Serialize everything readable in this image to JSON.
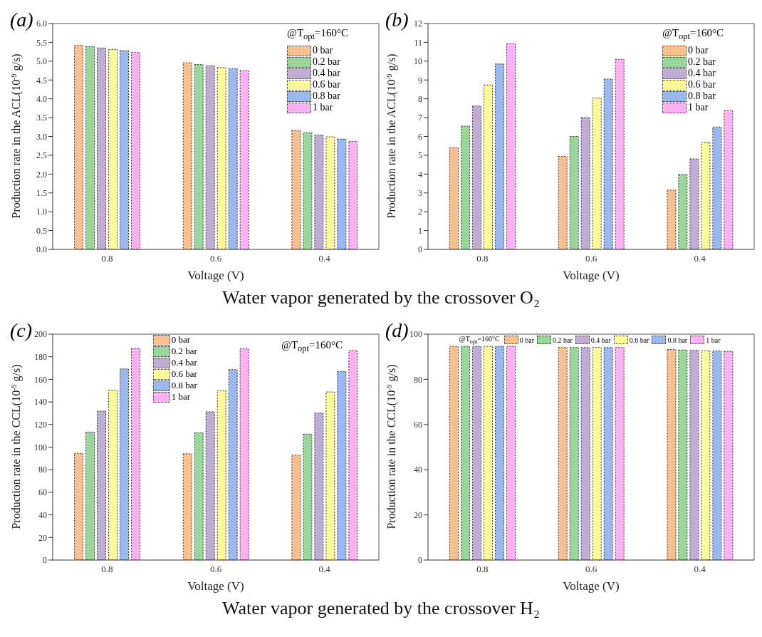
{
  "chart_data": [
    {
      "type": "bar",
      "title": "(a)",
      "ylabel": "Production rate in the ACL(10$^{-9}$ g/s)",
      "xlabel": "Voltage (V)",
      "legend_title": "@T$_{opt}$=160°C",
      "legend": "top right",
      "annotations": [
        "Water vapor generated by the crossover O₂"
      ],
      "categories": [
        "0.8",
        "0.6",
        "0.4"
      ],
      "ylim": [
        0,
        6
      ],
      "yticks": [
        {
          "value": 0,
          "label": "0.0"
        },
        {
          "value": 0.5,
          "label": "0.5"
        },
        {
          "value": 1,
          "label": "1.0"
        },
        {
          "value": 1.5,
          "label": "1.5"
        },
        {
          "value": 2,
          "label": "2.0"
        },
        {
          "value": 2.5,
          "label": "2.5"
        },
        {
          "value": 3,
          "label": "3.0"
        },
        {
          "value": 3.5,
          "label": "3.5"
        },
        {
          "value": 4,
          "label": "4.0"
        },
        {
          "value": 4.5,
          "label": "4.5"
        },
        {
          "value": 5,
          "label": "5.0"
        },
        {
          "value": 5.5,
          "label": "5.5"
        },
        {
          "value": 6,
          "label": "6.0"
        }
      ],
      "series": [
        {
          "name": "0 bar",
          "color": "#f9c08f",
          "values": [
            5.42,
            4.96,
            3.16
          ]
        },
        {
          "name": "0.2 bar",
          "color": "#98d69a",
          "values": [
            5.39,
            4.91,
            3.1
          ]
        },
        {
          "name": "0.4 bar",
          "color": "#bfadd3",
          "values": [
            5.35,
            4.88,
            3.04
          ]
        },
        {
          "name": "0.6 bar",
          "color": "#fdfa9a",
          "values": [
            5.31,
            4.83,
            2.99
          ]
        },
        {
          "name": "0.8 bar",
          "color": "#99b9f0",
          "values": [
            5.28,
            4.8,
            2.93
          ]
        },
        {
          "name": "1 bar",
          "color": "#fdb0f4",
          "values": [
            5.23,
            4.75,
            2.87
          ]
        }
      ]
    },
    {
      "type": "bar",
      "title": "(b)",
      "ylabel": "Production rate in the ACL(10$^{-9}$ g/s)",
      "xlabel": "Voltage (V)",
      "legend_title": "@T$_{opt}$=160°C",
      "legend": "top right",
      "categories": [
        "0.8",
        "0.6",
        "0.4"
      ],
      "ylim": [
        0,
        12
      ],
      "yticks": [
        0,
        1,
        2,
        3,
        4,
        5,
        6,
        7,
        8,
        9,
        10,
        11,
        12
      ],
      "series": [
        {
          "name": "0 bar",
          "color": "#f9c08f",
          "values": [
            5.4,
            4.94,
            3.15
          ]
        },
        {
          "name": "0.2 bar",
          "color": "#98d69a",
          "values": [
            6.55,
            6.0,
            3.98
          ]
        },
        {
          "name": "0.4 bar",
          "color": "#bfadd3",
          "values": [
            7.62,
            7.01,
            4.81
          ]
        },
        {
          "name": "0.6 bar",
          "color": "#fdfa9a",
          "values": [
            8.73,
            8.04,
            5.68
          ]
        },
        {
          "name": "0.8 bar",
          "color": "#99b9f0",
          "values": [
            9.85,
            9.05,
            6.5
          ]
        },
        {
          "name": "1 bar",
          "color": "#fdb0f4",
          "values": [
            10.93,
            10.1,
            7.37
          ]
        }
      ]
    },
    {
      "type": "bar",
      "title": "(c)",
      "ylabel": "Production rate in the CCL(10$^{-9}$ g/s)",
      "xlabel": "Voltage (V)",
      "legend_title": "@T$_{opt}$=160°C",
      "legend": "top left",
      "annotations": [
        "Water vapor generated by the crossover H₂"
      ],
      "categories": [
        "0.8",
        "0.6",
        "0.4"
      ],
      "ylim": [
        0,
        200
      ],
      "yticks": [
        0,
        20,
        40,
        60,
        80,
        100,
        120,
        140,
        160,
        180,
        200
      ],
      "series": [
        {
          "name": "0 bar",
          "color": "#f9c08f",
          "values": [
            94.5,
            94.1,
            93
          ]
        },
        {
          "name": "0.2 bar",
          "color": "#98d69a",
          "values": [
            113.3,
            112.8,
            111.5
          ]
        },
        {
          "name": "0.4 bar",
          "color": "#bfadd3",
          "values": [
            131.9,
            131.3,
            130.2
          ]
        },
        {
          "name": "0.6 bar",
          "color": "#fdfa9a",
          "values": [
            150.5,
            150,
            148.8
          ]
        },
        {
          "name": "0.8 bar",
          "color": "#99b9f0",
          "values": [
            169.2,
            168.6,
            167
          ]
        },
        {
          "name": "1 bar",
          "color": "#fdb0f4",
          "values": [
            187.5,
            187,
            185.5
          ]
        }
      ]
    },
    {
      "type": "bar",
      "title": "(d)",
      "ylabel": "Production rate in the CCL(10$^{-9}$ g/s)",
      "xlabel": "Voltage (V)",
      "legend_title": "@T$_{opt}$=160°C",
      "legend": "top",
      "categories": [
        "0.8",
        "0.6",
        "0.4"
      ],
      "ylim": [
        0,
        100
      ],
      "yticks": [
        0,
        20,
        40,
        60,
        80,
        100
      ],
      "series": [
        {
          "name": "0 bar",
          "color": "#f9c08f",
          "values": [
            94.6,
            94.1,
            93.2
          ]
        },
        {
          "name": "0.2 bar",
          "color": "#98d69a",
          "values": [
            94.6,
            94.1,
            93.0
          ]
        },
        {
          "name": "0.4 bar",
          "color": "#bfadd3",
          "values": [
            94.6,
            94.1,
            92.9
          ]
        },
        {
          "name": "0.6 bar",
          "color": "#fdfa9a",
          "values": [
            94.6,
            94.1,
            92.7
          ]
        },
        {
          "name": "0.8 bar",
          "color": "#99b9f0",
          "values": [
            94.6,
            94.1,
            92.6
          ]
        },
        {
          "name": "1 bar",
          "color": "#fdb0f4",
          "values": [
            94.6,
            94.1,
            92.4
          ]
        }
      ]
    }
  ]
}
